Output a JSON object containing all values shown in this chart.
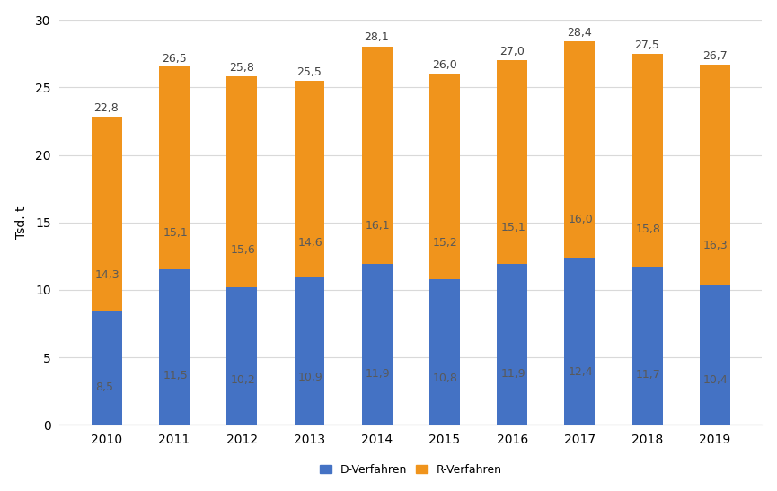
{
  "years": [
    "2010",
    "2011",
    "2012",
    "2013",
    "2014",
    "2015",
    "2016",
    "2017",
    "2018",
    "2019"
  ],
  "d_values": [
    8.5,
    11.5,
    10.2,
    10.9,
    11.9,
    10.8,
    11.9,
    12.4,
    11.7,
    10.4
  ],
  "r_values": [
    14.3,
    15.1,
    15.6,
    14.6,
    16.1,
    15.2,
    15.1,
    16.0,
    15.8,
    16.3
  ],
  "totals": [
    22.8,
    26.5,
    25.8,
    25.5,
    28.1,
    26.0,
    27.0,
    28.4,
    27.5,
    26.7
  ],
  "d_color": "#4472c4",
  "r_color": "#f0941c",
  "ylabel": "Tsd. t",
  "ylim": [
    0,
    30
  ],
  "yticks": [
    0,
    5,
    10,
    15,
    20,
    25,
    30
  ],
  "legend_d": "D-Verfahren",
  "legend_r": "R-Verfahren",
  "bar_width": 0.45,
  "background_color": "#ffffff",
  "grid_color": "#d9d9d9",
  "label_fontsize": 9,
  "axis_fontsize": 10,
  "tick_fontsize": 10,
  "label_color": "#595959",
  "total_label_color": "#404040"
}
